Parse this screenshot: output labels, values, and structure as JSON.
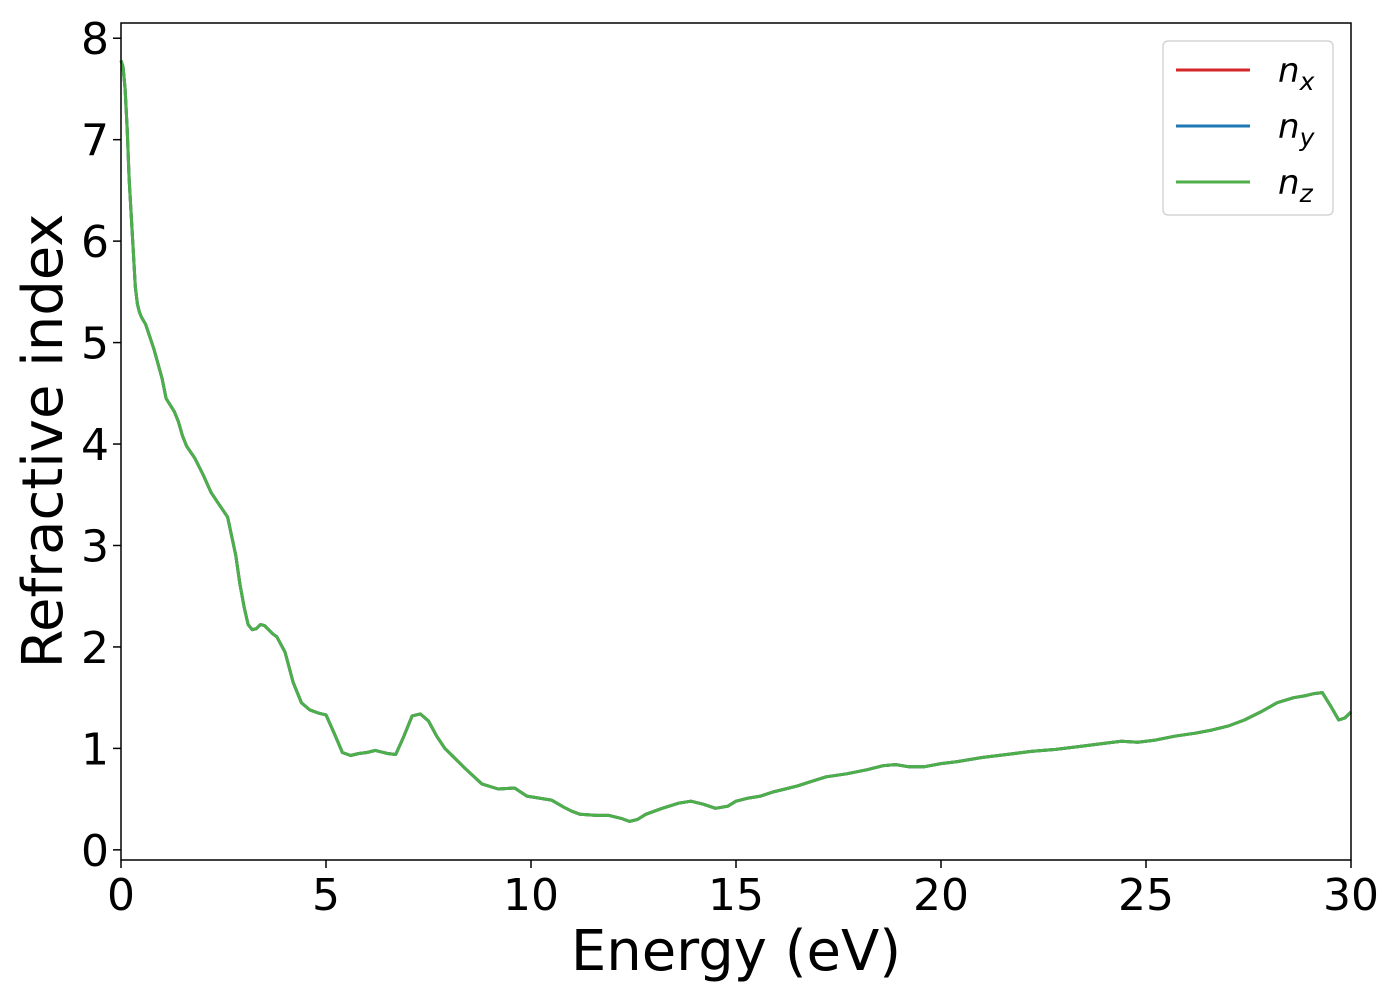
{
  "chart_data": {
    "type": "line",
    "title": "",
    "xlabel": "Energy (eV)",
    "ylabel": "Refractive index",
    "xlim": [
      0,
      30
    ],
    "ylim": [
      -0.1,
      8.15
    ],
    "xticks": [
      0,
      5,
      10,
      15,
      20,
      25,
      30
    ],
    "yticks": [
      0,
      1,
      2,
      3,
      4,
      5,
      6,
      7,
      8
    ],
    "grid": false,
    "legend_position": "top-right",
    "series": [
      {
        "name": "n",
        "subscript": "x",
        "color": "#d62728"
      },
      {
        "name": "n",
        "subscript": "y",
        "color": "#1f77b4"
      },
      {
        "name": "n",
        "subscript": "z",
        "color": "#4daf4a"
      }
    ],
    "x": [
      0,
      0.05,
      0.1,
      0.15,
      0.2,
      0.3,
      0.35,
      0.4,
      0.45,
      0.5,
      0.6,
      0.7,
      0.8,
      1.0,
      1.1,
      1.3,
      1.4,
      1.5,
      1.6,
      1.8,
      2.0,
      2.2,
      2.4,
      2.6,
      2.8,
      2.9,
      3.0,
      3.1,
      3.2,
      3.3,
      3.4,
      3.5,
      3.6,
      3.7,
      3.8,
      4.0,
      4.2,
      4.4,
      4.6,
      4.8,
      5.0,
      5.2,
      5.4,
      5.6,
      5.8,
      6.0,
      6.2,
      6.5,
      6.7,
      6.9,
      7.1,
      7.3,
      7.5,
      7.7,
      7.9,
      8.1,
      8.4,
      8.8,
      9.2,
      9.6,
      9.9,
      10.2,
      10.5,
      10.8,
      11.0,
      11.2,
      11.6,
      11.9,
      12.2,
      12.4,
      12.6,
      12.8,
      13.2,
      13.6,
      13.9,
      14.2,
      14.5,
      14.8,
      15.0,
      15.3,
      15.6,
      15.9,
      16.2,
      16.5,
      16.8,
      17.2,
      17.7,
      18.2,
      18.6,
      18.9,
      19.2,
      19.6,
      20.0,
      20.4,
      21.0,
      21.6,
      22.2,
      22.8,
      23.4,
      24.0,
      24.4,
      24.8,
      25.2,
      25.7,
      26.2,
      26.6,
      27.0,
      27.4,
      27.8,
      28.2,
      28.6,
      28.9,
      29.1,
      29.3,
      29.5,
      29.7,
      29.85,
      30.0
    ],
    "y": [
      7.78,
      7.72,
      7.5,
      7.1,
      6.6,
      5.9,
      5.55,
      5.38,
      5.3,
      5.25,
      5.18,
      5.06,
      4.94,
      4.65,
      4.45,
      4.32,
      4.22,
      4.08,
      3.98,
      3.86,
      3.7,
      3.52,
      3.4,
      3.28,
      2.9,
      2.62,
      2.4,
      2.22,
      2.17,
      2.18,
      2.22,
      2.21,
      2.17,
      2.13,
      2.1,
      1.95,
      1.65,
      1.45,
      1.38,
      1.35,
      1.33,
      1.15,
      0.96,
      0.93,
      0.95,
      0.96,
      0.98,
      0.95,
      0.94,
      1.12,
      1.32,
      1.34,
      1.27,
      1.12,
      1.0,
      0.92,
      0.8,
      0.65,
      0.6,
      0.61,
      0.53,
      0.51,
      0.49,
      0.42,
      0.38,
      0.35,
      0.34,
      0.34,
      0.31,
      0.28,
      0.3,
      0.35,
      0.41,
      0.46,
      0.48,
      0.45,
      0.41,
      0.43,
      0.48,
      0.51,
      0.53,
      0.57,
      0.6,
      0.63,
      0.67,
      0.72,
      0.75,
      0.79,
      0.83,
      0.84,
      0.82,
      0.82,
      0.85,
      0.87,
      0.91,
      0.94,
      0.97,
      0.99,
      1.02,
      1.05,
      1.07,
      1.06,
      1.08,
      1.12,
      1.15,
      1.18,
      1.22,
      1.28,
      1.36,
      1.45,
      1.5,
      1.52,
      1.54,
      1.55,
      1.42,
      1.28,
      1.3,
      1.36
    ]
  }
}
